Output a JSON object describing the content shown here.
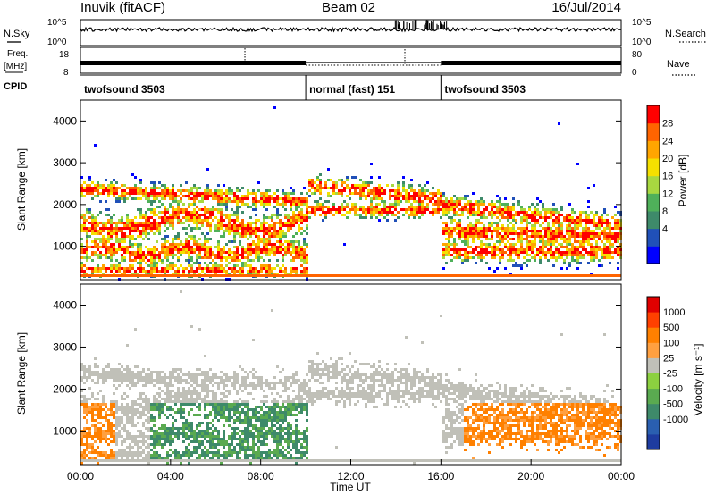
{
  "header": {
    "station": "Inuvik (fitACF)",
    "beam": "Beam 02",
    "date": "16/Jul/2014"
  },
  "noise_panel": {
    "left_label": "N.Sky",
    "right_label": "N.Search",
    "left_ticks": [
      "10^5",
      "10^0"
    ],
    "right_ticks": [
      "10^5",
      "10^0"
    ]
  },
  "freq_panel": {
    "left_label_1": "Freq.",
    "left_label_2": "[MHz]",
    "right_label": "Nave",
    "left_ticks": [
      "18",
      "8"
    ],
    "right_ticks": [
      "80",
      "0"
    ]
  },
  "cpid_panel": {
    "label": "CPID",
    "segments": [
      {
        "name": "twofsound 3503",
        "start_h": 0,
        "end_h": 10
      },
      {
        "name": "normal (fast) 151",
        "start_h": 10,
        "end_h": 16
      },
      {
        "name": "twofsound 3503",
        "start_h": 16,
        "end_h": 24
      }
    ]
  },
  "x_axis": {
    "label": "Time UT",
    "ticks": [
      "00:00",
      "04:00",
      "08:00",
      "12:00",
      "16:00",
      "20:00",
      "00:00"
    ],
    "range_h": [
      0,
      24
    ]
  },
  "chart_data": [
    {
      "type": "heatmap",
      "ylabel": "Slant Range [km]",
      "ylim": [
        200,
        4500
      ],
      "yticks": [
        1000,
        2000,
        3000,
        4000
      ],
      "colorbar": {
        "label": "Power [dB]",
        "ticks": [
          "28",
          "24",
          "20",
          "16",
          "12",
          "8",
          "4"
        ],
        "colors": [
          "#0000ff",
          "#2050b8",
          "#3e8a6a",
          "#4fb05a",
          "#a8d840",
          "#f5e000",
          "#ffa500",
          "#ff6400",
          "#ff0000"
        ]
      }
    },
    {
      "type": "heatmap",
      "ylabel": "Slant Range [km]",
      "ylim": [
        200,
        4500
      ],
      "yticks": [
        1000,
        2000,
        3000,
        4000
      ],
      "colorbar": {
        "label": "Velocity [m s⁻¹]",
        "ticks": [
          "1000",
          "500",
          "100",
          "25",
          "-25",
          "-100",
          "-500",
          "-1000"
        ],
        "colors": [
          "#1e3ca0",
          "#2a5fb0",
          "#3e8a6a",
          "#5aaa50",
          "#8cd040",
          "#c0c0b8",
          "#ffa040",
          "#ff8000",
          "#ff4000",
          "#e00000"
        ]
      }
    }
  ]
}
